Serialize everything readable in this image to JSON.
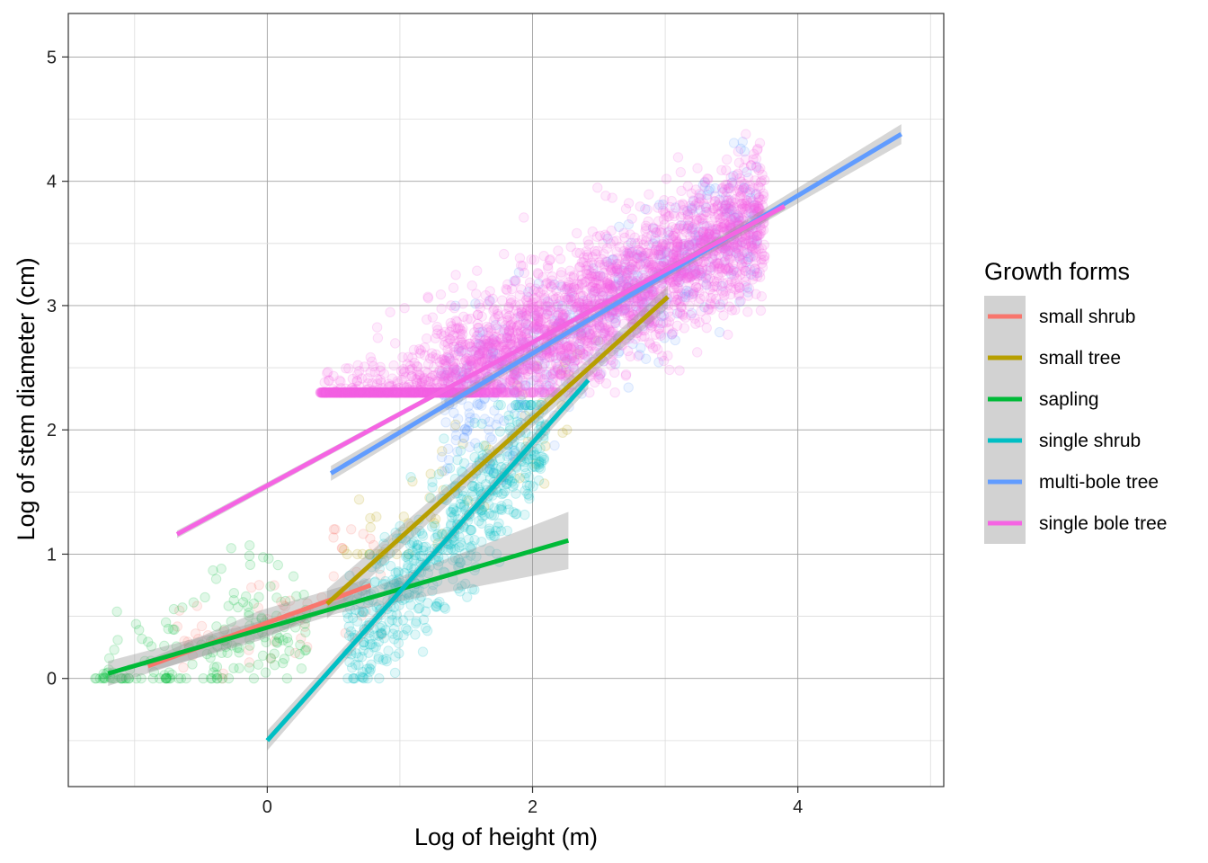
{
  "chart_data": {
    "type": "scatter",
    "title": "",
    "xlabel": "Log of height (m)",
    "ylabel": "Log of stem diameter (cm)",
    "xlim": [
      -1.5,
      5.1
    ],
    "ylim": [
      -0.87,
      5.35
    ],
    "x_ticks": [
      0,
      2,
      4
    ],
    "y_ticks": [
      0,
      1,
      2,
      3,
      4,
      5
    ],
    "grid": true,
    "legend": {
      "title": "Growth forms",
      "position": "right"
    },
    "point_alpha": 0.12,
    "series": [
      {
        "name": "small shrub",
        "color": "#F8766D",
        "fit": {
          "x": [
            -0.9,
            0.78
          ],
          "y": [
            0.1,
            0.75
          ]
        },
        "ci": [
          0.05,
          0.12,
          0.06
        ],
        "cloud": {
          "x": [
            -0.7,
            0.9
          ],
          "y": [
            0.0,
            1.2
          ],
          "n": 60
        }
      },
      {
        "name": "small tree",
        "color": "#B79F00",
        "fit": {
          "x": [
            0.45,
            3.02
          ],
          "y": [
            0.6,
            3.07
          ]
        },
        "ci": [
          0.12,
          0.06,
          0.09
        ],
        "cloud": {
          "x": [
            0.5,
            2.6
          ],
          "y": [
            1.0,
            2.8
          ],
          "n": 60
        }
      },
      {
        "name": "sapling",
        "color": "#00BA38",
        "fit": {
          "x": [
            -1.2,
            2.27
          ],
          "y": [
            0.04,
            1.11
          ]
        },
        "ci": [
          0.1,
          0.05,
          0.23
        ],
        "cloud": {
          "x": [
            -1.3,
            0.3
          ],
          "y": [
            0.0,
            1.3
          ],
          "n": 170
        }
      },
      {
        "name": "single shrub",
        "color": "#00BFC4",
        "fit": {
          "x": [
            0.0,
            2.42
          ],
          "y": [
            -0.5,
            2.4
          ]
        },
        "ci": [
          0.08,
          0.04,
          0.07
        ],
        "cloud": {
          "x": [
            0.6,
            2.1
          ],
          "y": [
            0.0,
            2.2
          ],
          "n": 600
        }
      },
      {
        "name": "multi-bole tree",
        "color": "#619CFF",
        "fit": {
          "x": [
            0.48,
            4.78
          ],
          "y": [
            1.65,
            4.38
          ]
        },
        "ci": [
          0.06,
          0.03,
          0.08
        ],
        "cloud": {
          "x": [
            1.3,
            3.7
          ],
          "y": [
            1.6,
            4.5
          ],
          "n": 500
        }
      },
      {
        "name": "single bole tree",
        "color": "#F564E3",
        "fit": {
          "x": [
            -0.68,
            3.9
          ],
          "y": [
            1.16,
            3.8
          ]
        },
        "ci": [
          0.03,
          0.02,
          0.03
        ],
        "cloud": {
          "x": [
            0.4,
            3.75
          ],
          "y": [
            2.3,
            4.9
          ],
          "n": 3400
        }
      }
    ]
  }
}
